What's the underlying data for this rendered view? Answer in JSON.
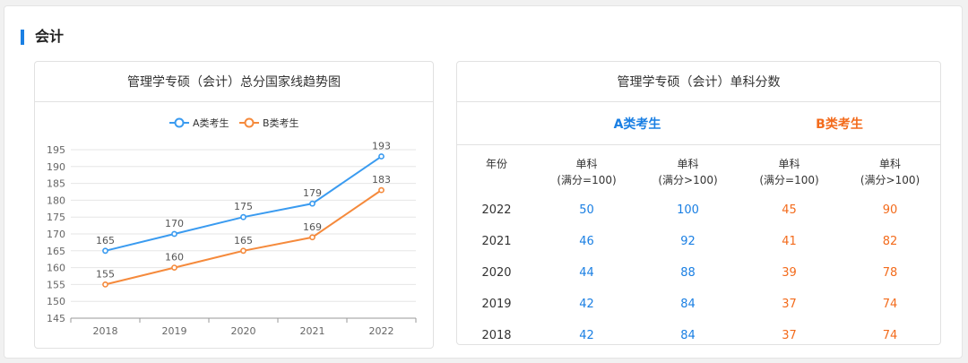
{
  "section": {
    "title": "会计"
  },
  "left_card": {
    "title": "管理学专硕（会计）总分国家线趋势图"
  },
  "right_card": {
    "title": "管理学专硕（会计）单科分数"
  },
  "colors": {
    "accent": "#1a7fe3",
    "series_a": "#3a9bf0",
    "series_b": "#f58a3c",
    "b_text": "#f36b1c"
  },
  "chart_data": {
    "type": "line",
    "x": [
      "2018",
      "2019",
      "2020",
      "2021",
      "2022"
    ],
    "series": [
      {
        "name": "A类考生",
        "values": [
          165,
          170,
          175,
          179,
          193
        ]
      },
      {
        "name": "B类考生",
        "values": [
          155,
          160,
          165,
          169,
          183
        ]
      }
    ],
    "ylim": [
      145,
      195
    ],
    "yticks": [
      145,
      150,
      155,
      160,
      165,
      170,
      175,
      180,
      185,
      190,
      195
    ],
    "grid": true,
    "legend": "top"
  },
  "table": {
    "groups": [
      "A类考生",
      "B类考生"
    ],
    "headers": [
      "年份",
      "单科\n(满分=100)",
      "单科\n(满分>100)",
      "单科\n(满分=100)",
      "单科\n(满分>100)"
    ],
    "rows": [
      {
        "year": "2022",
        "a1": "50",
        "a2": "100",
        "b1": "45",
        "b2": "90"
      },
      {
        "year": "2021",
        "a1": "46",
        "a2": "92",
        "b1": "41",
        "b2": "82"
      },
      {
        "year": "2020",
        "a1": "44",
        "a2": "88",
        "b1": "39",
        "b2": "78"
      },
      {
        "year": "2019",
        "a1": "42",
        "a2": "84",
        "b1": "37",
        "b2": "74"
      },
      {
        "year": "2018",
        "a1": "42",
        "a2": "84",
        "b1": "37",
        "b2": "74"
      }
    ]
  }
}
